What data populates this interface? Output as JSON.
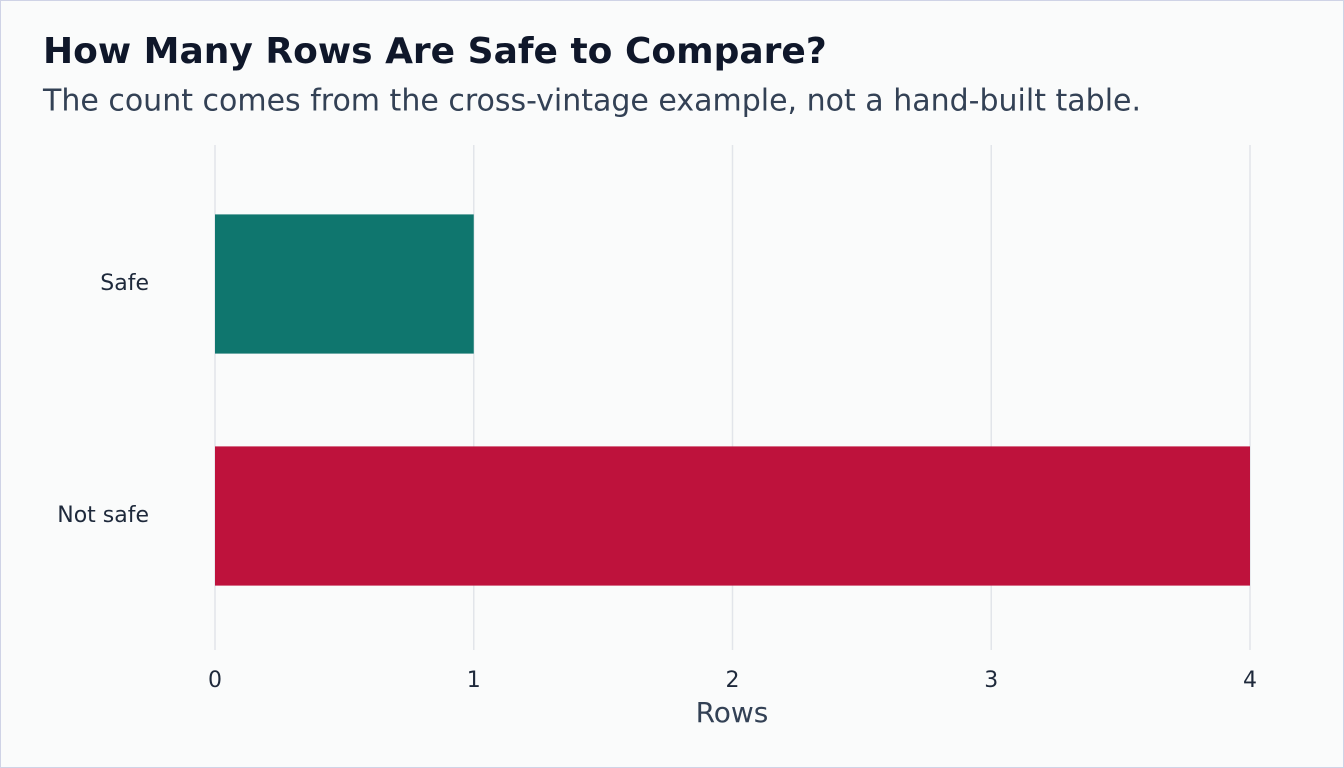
{
  "chart_data": {
    "type": "hbar",
    "title": "How Many Rows Are Safe to Compare?",
    "subtitle": "The count comes from the cross-vintage example, not a hand-built table.",
    "categories": [
      "Safe",
      "Not safe"
    ],
    "values": [
      1,
      4
    ],
    "colors": [
      "#0f766e",
      "#be123c"
    ],
    "xlabel": "Rows",
    "xlim": [
      0,
      4
    ],
    "xticks": [
      0,
      1,
      2,
      3,
      4
    ],
    "grid": true
  }
}
